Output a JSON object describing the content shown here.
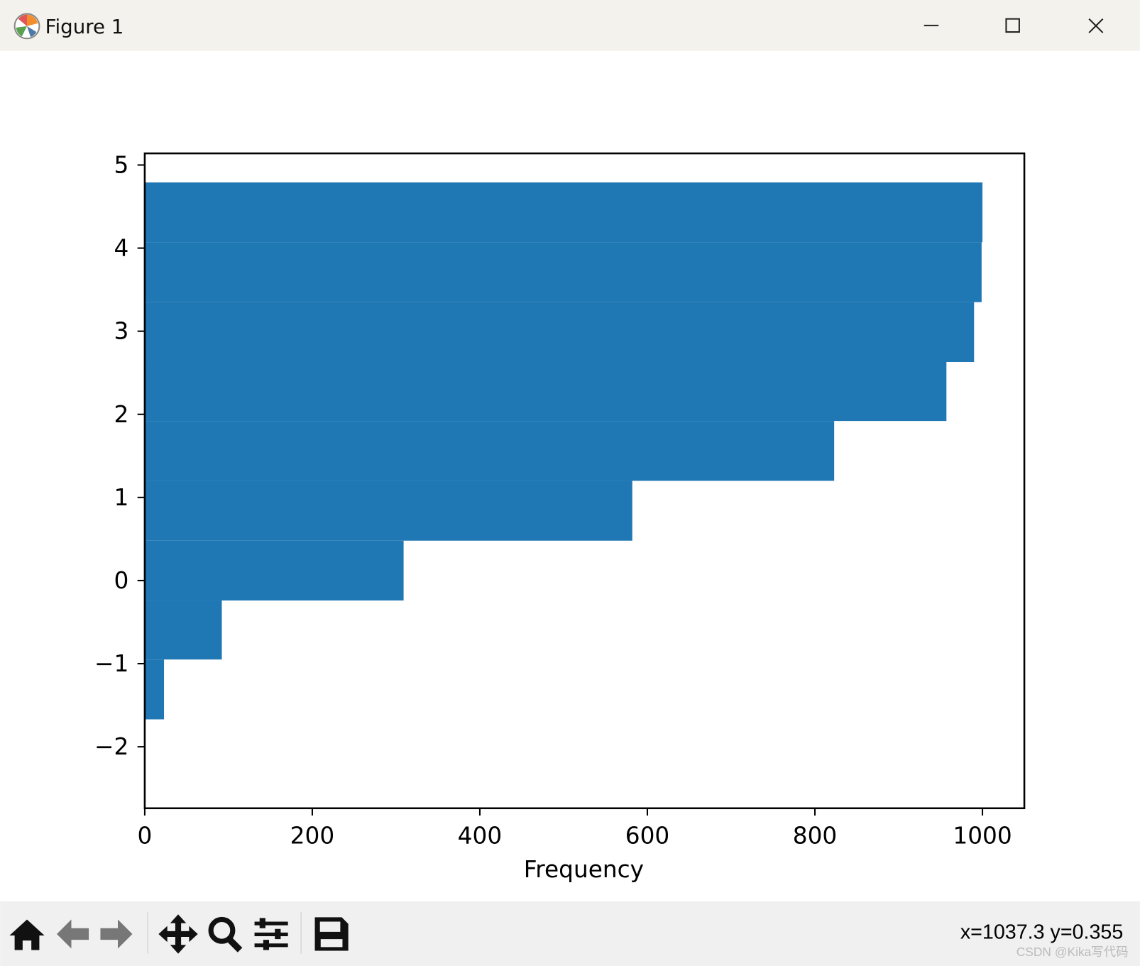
{
  "window": {
    "title": "Figure 1"
  },
  "toolbar": {
    "status": "x=1037.3 y=0.355"
  },
  "watermark": "CSDN @Kika写代码",
  "chart_data": {
    "type": "histogram",
    "orientation": "horizontal",
    "xlabel": "Frequency",
    "bins": [
      -1.67,
      -0.95,
      -0.24,
      0.48,
      1.2,
      1.92,
      2.63,
      3.35,
      4.07,
      4.79
    ],
    "values": [
      23,
      92,
      309,
      582,
      823,
      957,
      990,
      999,
      1000
    ],
    "color": "#1f77b4",
    "xlim": [
      0,
      1050
    ],
    "xticks": [
      0,
      200,
      400,
      600,
      800,
      1000
    ],
    "ylim": [
      -2.74,
      5.14
    ],
    "yticks": [
      {
        "value": -2,
        "label": "−2"
      },
      {
        "value": -1,
        "label": "−1"
      },
      0,
      1,
      2,
      3,
      4,
      5
    ]
  }
}
